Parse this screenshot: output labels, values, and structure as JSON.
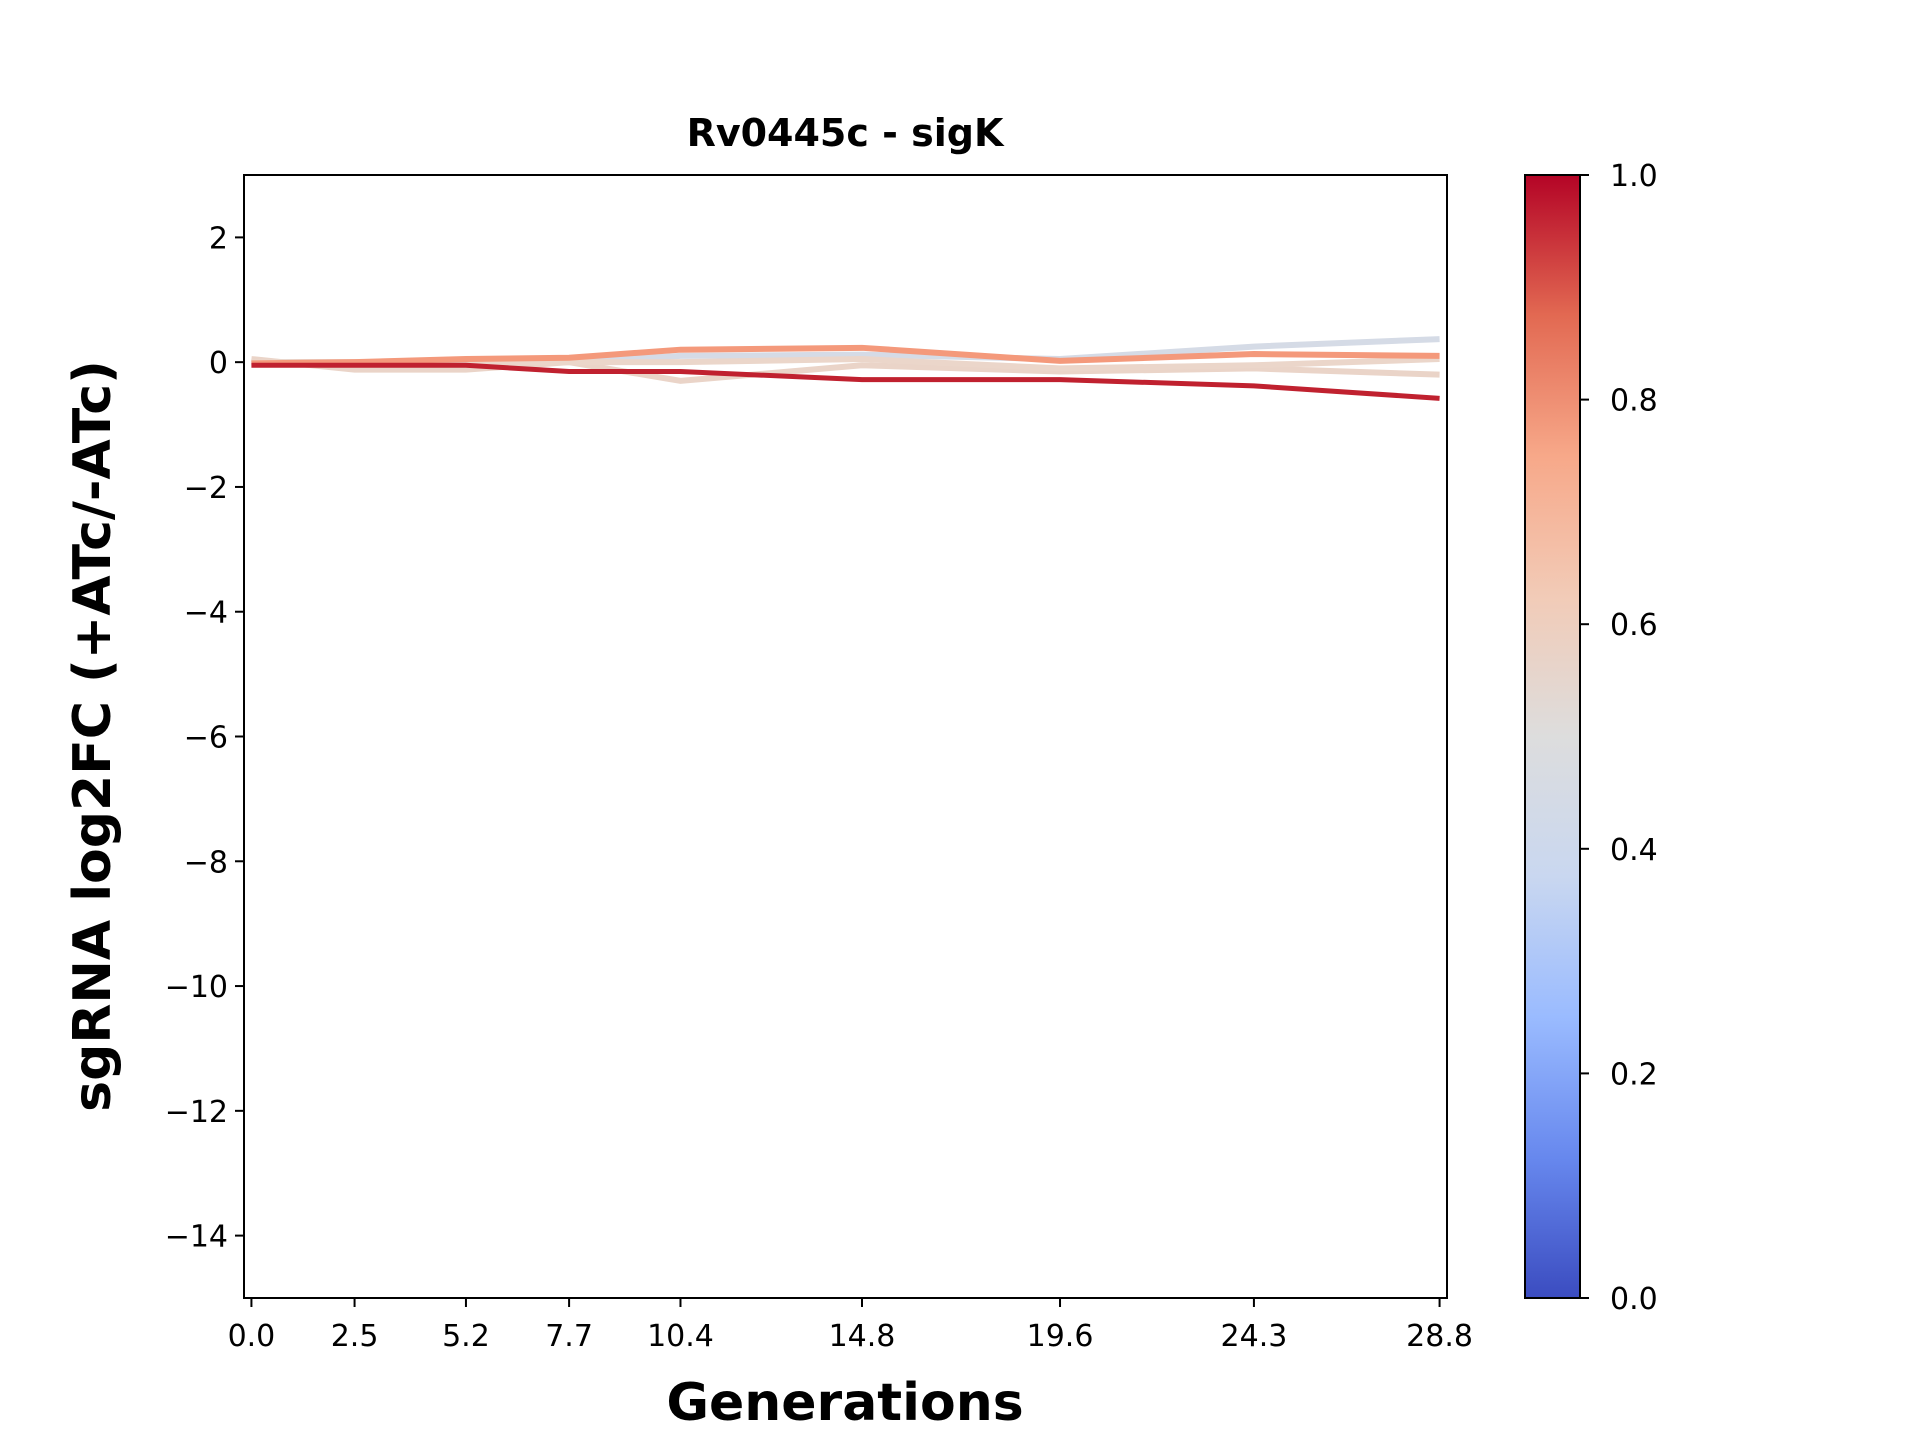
{
  "chart_data": {
    "type": "line",
    "title": "Rv0445c - sigK",
    "xlabel": "Generations",
    "ylabel": "sgRNA log2FC (+ATc/-ATc)",
    "x": [
      0.0,
      2.5,
      5.2,
      7.7,
      10.4,
      14.8,
      19.6,
      24.3,
      28.8
    ],
    "x_tick_labels": [
      "0.0",
      "2.5",
      "5.2",
      "7.7",
      "10.4",
      "14.8",
      "19.6",
      "24.3",
      "28.8"
    ],
    "xlim": [
      -0.18,
      28.98
    ],
    "ylim": [
      -15,
      3
    ],
    "y_ticks": [
      2,
      0,
      -2,
      -4,
      -6,
      -8,
      -10,
      -12,
      -14
    ],
    "y_tick_labels": [
      "2",
      "0",
      "−2",
      "−4",
      "−6",
      "−8",
      "−10",
      "−12",
      "−14"
    ],
    "grid": false,
    "colormap": "coolwarm",
    "colorbar": {
      "range": [
        0,
        1
      ],
      "ticks": [
        "0.0",
        "0.2",
        "0.4",
        "0.6",
        "0.8",
        "1.0"
      ],
      "stops": [
        "#3b4cc0",
        "#6788ee",
        "#9abbff",
        "#c9d7f0",
        "#dddddd",
        "#f2cbb7",
        "#f7a889",
        "#e26952",
        "#b40426"
      ]
    },
    "series": [
      {
        "color": "#d5dbe6",
        "values": [
          0.0,
          0.0,
          0.0,
          0.0,
          0.1,
          0.12,
          0.05,
          0.25,
          0.37
        ]
      },
      {
        "color": "#ead4c8",
        "values": [
          0.05,
          -0.12,
          -0.12,
          0.0,
          -0.3,
          -0.05,
          -0.15,
          -0.1,
          -0.2
        ]
      },
      {
        "color": "#ebd6ca",
        "values": [
          0.0,
          0.0,
          0.0,
          0.0,
          0.0,
          0.05,
          -0.1,
          -0.05,
          0.05
        ]
      },
      {
        "color": "#f4997b",
        "values": [
          -0.02,
          0.0,
          0.05,
          0.07,
          0.2,
          0.23,
          0.02,
          0.13,
          0.1
        ]
      },
      {
        "color": "#c0212f",
        "values": [
          -0.05,
          -0.05,
          -0.05,
          -0.15,
          -0.15,
          -0.28,
          -0.28,
          -0.38,
          -0.58
        ]
      }
    ]
  }
}
